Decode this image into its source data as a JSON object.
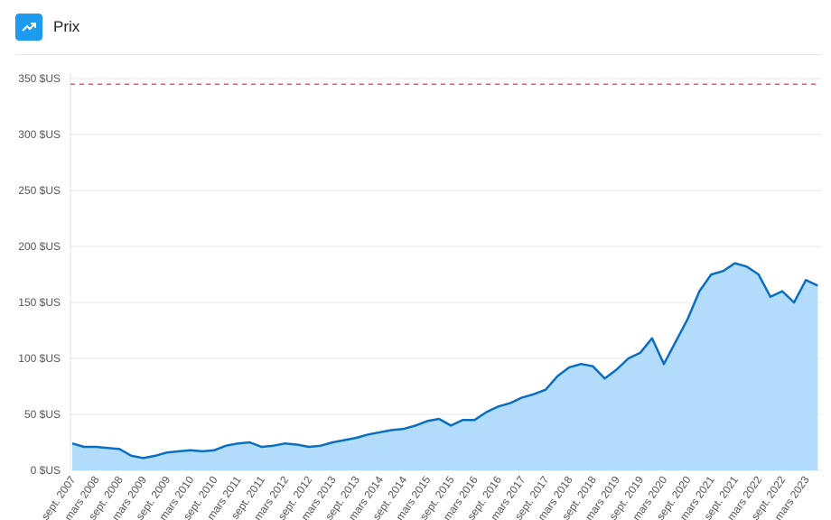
{
  "title": "Prix",
  "chart_data": {
    "type": "area",
    "categories": [
      "sept. 2007",
      null,
      "mars 2008",
      null,
      "sept. 2008",
      null,
      "mars 2009",
      null,
      "sept. 2009",
      null,
      "mars 2010",
      null,
      "sept. 2010",
      null,
      "mars 2011",
      null,
      "sept. 2011",
      null,
      "mars 2012",
      null,
      "sept. 2012",
      null,
      "mars 2013",
      null,
      "sept. 2013",
      null,
      "mars 2014",
      null,
      "sept. 2014",
      null,
      "mars 2015",
      null,
      "sept. 2015",
      null,
      "mars 2016",
      null,
      "sept. 2016",
      null,
      "mars 2017",
      null,
      "sept. 2017",
      null,
      "mars 2018",
      null,
      "sept. 2018",
      null,
      "mars 2019",
      null,
      "sept. 2019",
      null,
      "mars 2020",
      null,
      "sept. 2020",
      null,
      "mars 2021",
      null,
      "sept. 2021",
      null,
      "mars 2022",
      null,
      "sept. 2022",
      null,
      "mars 2023",
      null
    ],
    "values": [
      24,
      21,
      21,
      20,
      19,
      13,
      11,
      13,
      16,
      17,
      18,
      17,
      18,
      22,
      24,
      25,
      21,
      22,
      24,
      23,
      21,
      22,
      25,
      27,
      29,
      32,
      34,
      36,
      37,
      40,
      44,
      46,
      40,
      45,
      45,
      52,
      57,
      60,
      65,
      68,
      72,
      84,
      92,
      95,
      93,
      82,
      90,
      100,
      105,
      118,
      95,
      115,
      135,
      160,
      175,
      178,
      185,
      182,
      175,
      155,
      160,
      150,
      170,
      165
    ],
    "color": "#0a6fc2",
    "fill": "#b3dcfb",
    "reference_line": 345,
    "reference_color": "#f0506e",
    "ylim": [
      0,
      350
    ],
    "yticks": [
      {
        "value": 0,
        "label": "0 $US"
      },
      {
        "value": 50,
        "label": "50 $US"
      },
      {
        "value": 100,
        "label": "100 $US"
      },
      {
        "value": 150,
        "label": "150 $US"
      },
      {
        "value": 200,
        "label": "200 $US"
      },
      {
        "value": 250,
        "label": "250 $US"
      },
      {
        "value": 300,
        "label": "300 $US"
      },
      {
        "value": 350,
        "label": "350 $US"
      }
    ],
    "grid": true
  }
}
